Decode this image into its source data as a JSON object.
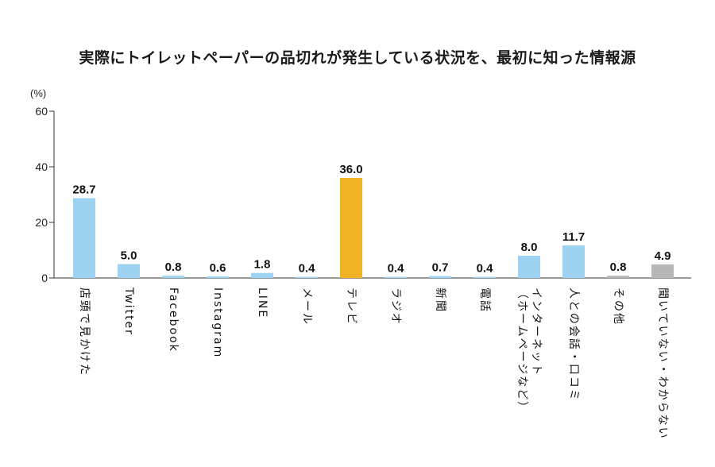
{
  "chart_data": {
    "type": "bar",
    "title": "実際にトイレットペーパーの品切れが発生している状況を、最初に知った情報源",
    "unit_label": "(%)",
    "ylim": [
      0,
      60
    ],
    "yticks": [
      0,
      20,
      40,
      60
    ],
    "categories": [
      "店頭で見かけた",
      "Twitter",
      "Facebook",
      "Instagram",
      "LINE",
      "メール",
      "テレビ",
      "ラジオ",
      "新聞",
      "電話",
      "インターネット\n（ホームページなど）",
      "人との会話・口コミ",
      "その他",
      "聞いていない・わからない"
    ],
    "values": [
      28.7,
      5.0,
      0.8,
      0.6,
      1.8,
      0.4,
      36.0,
      0.4,
      0.7,
      0.4,
      8.0,
      11.7,
      0.8,
      4.9
    ],
    "value_labels": [
      "28.7",
      "5.0",
      "0.8",
      "0.6",
      "1.8",
      "0.4",
      "36.0",
      "0.4",
      "0.7",
      "0.4",
      "8.0",
      "11.7",
      "0.8",
      "4.9"
    ],
    "bar_colors": [
      "#9dd3f0",
      "#9dd3f0",
      "#9dd3f0",
      "#9dd3f0",
      "#9dd3f0",
      "#9dd3f0",
      "#f0b323",
      "#9dd3f0",
      "#9dd3f0",
      "#9dd3f0",
      "#9dd3f0",
      "#9dd3f0",
      "#b7b7b7",
      "#b7b7b7"
    ],
    "axis_color": "#333333"
  }
}
